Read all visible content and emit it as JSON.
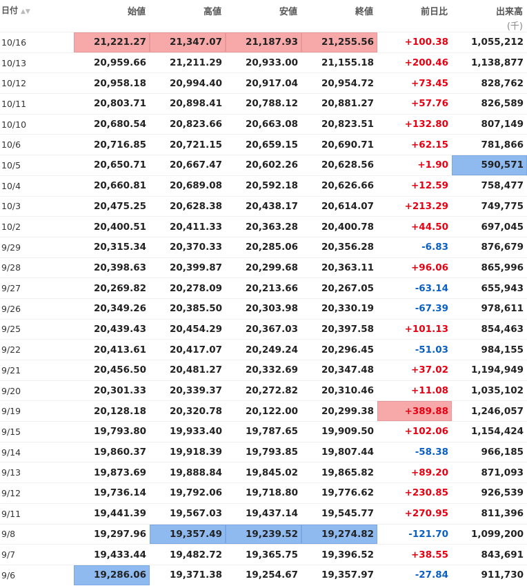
{
  "header": {
    "columns": [
      "日付",
      "始値",
      "高値",
      "安値",
      "終値",
      "前日比",
      "出来高"
    ],
    "volume_unit": "(千)"
  },
  "table": {
    "rows": [
      [
        "10/16",
        "21,221.27",
        "21,347.07",
        "21,187.93",
        "21,255.56",
        "+100.38",
        "1,055,212"
      ],
      [
        "10/13",
        "20,959.66",
        "21,211.29",
        "20,933.00",
        "21,155.18",
        "+200.46",
        "1,138,877"
      ],
      [
        "10/12",
        "20,958.18",
        "20,994.40",
        "20,917.04",
        "20,954.72",
        "+73.45",
        "828,762"
      ],
      [
        "10/11",
        "20,803.71",
        "20,898.41",
        "20,788.12",
        "20,881.27",
        "+57.76",
        "826,589"
      ],
      [
        "10/10",
        "20,680.54",
        "20,823.66",
        "20,663.08",
        "20,823.51",
        "+132.80",
        "807,149"
      ],
      [
        "10/6",
        "20,716.85",
        "20,721.15",
        "20,659.15",
        "20,690.71",
        "+62.15",
        "781,866"
      ],
      [
        "10/5",
        "20,650.71",
        "20,667.47",
        "20,602.26",
        "20,628.56",
        "+1.90",
        "590,571"
      ],
      [
        "10/4",
        "20,660.81",
        "20,689.08",
        "20,592.18",
        "20,626.66",
        "+12.59",
        "758,477"
      ],
      [
        "10/3",
        "20,475.25",
        "20,628.38",
        "20,438.17",
        "20,614.07",
        "+213.29",
        "749,775"
      ],
      [
        "10/2",
        "20,400.51",
        "20,411.33",
        "20,363.28",
        "20,400.78",
        "+44.50",
        "697,045"
      ],
      [
        "9/29",
        "20,315.34",
        "20,370.33",
        "20,285.06",
        "20,356.28",
        "-6.83",
        "876,679"
      ],
      [
        "9/28",
        "20,398.63",
        "20,399.87",
        "20,299.68",
        "20,363.11",
        "+96.06",
        "865,996"
      ],
      [
        "9/27",
        "20,269.82",
        "20,278.09",
        "20,213.66",
        "20,267.05",
        "-63.14",
        "655,943"
      ],
      [
        "9/26",
        "20,349.26",
        "20,385.50",
        "20,303.98",
        "20,330.19",
        "-67.39",
        "978,611"
      ],
      [
        "9/25",
        "20,439.43",
        "20,454.29",
        "20,367.03",
        "20,397.58",
        "+101.13",
        "854,463"
      ],
      [
        "9/22",
        "20,413.61",
        "20,417.07",
        "20,249.24",
        "20,296.45",
        "-51.03",
        "984,155"
      ],
      [
        "9/21",
        "20,456.50",
        "20,481.27",
        "20,332.69",
        "20,347.48",
        "+37.02",
        "1,194,949"
      ],
      [
        "9/20",
        "20,301.33",
        "20,339.37",
        "20,272.82",
        "20,310.46",
        "+11.08",
        "1,035,102"
      ],
      [
        "9/19",
        "20,128.18",
        "20,320.78",
        "20,122.00",
        "20,299.38",
        "+389.88",
        "1,246,057"
      ],
      [
        "9/15",
        "19,793.80",
        "19,933.40",
        "19,787.65",
        "19,909.50",
        "+102.06",
        "1,154,424"
      ],
      [
        "9/14",
        "19,860.37",
        "19,918.39",
        "19,793.85",
        "19,807.44",
        "-58.38",
        "966,185"
      ],
      [
        "9/13",
        "19,873.69",
        "19,888.84",
        "19,845.02",
        "19,865.82",
        "+89.20",
        "871,093"
      ],
      [
        "9/12",
        "19,736.14",
        "19,792.06",
        "19,718.80",
        "19,776.62",
        "+230.85",
        "926,539"
      ],
      [
        "9/11",
        "19,441.39",
        "19,567.03",
        "19,437.14",
        "19,545.77",
        "+270.95",
        "811,396"
      ],
      [
        "9/8",
        "19,297.96",
        "19,357.49",
        "19,239.52",
        "19,274.82",
        "-121.70",
        "1,099,200"
      ],
      [
        "9/7",
        "19,433.44",
        "19,482.72",
        "19,365.75",
        "19,396.52",
        "+38.55",
        "843,691"
      ],
      [
        "9/6",
        "19,286.06",
        "19,371.38",
        "19,254.67",
        "19,357.97",
        "-27.84",
        "911,730"
      ]
    ]
  }
}
